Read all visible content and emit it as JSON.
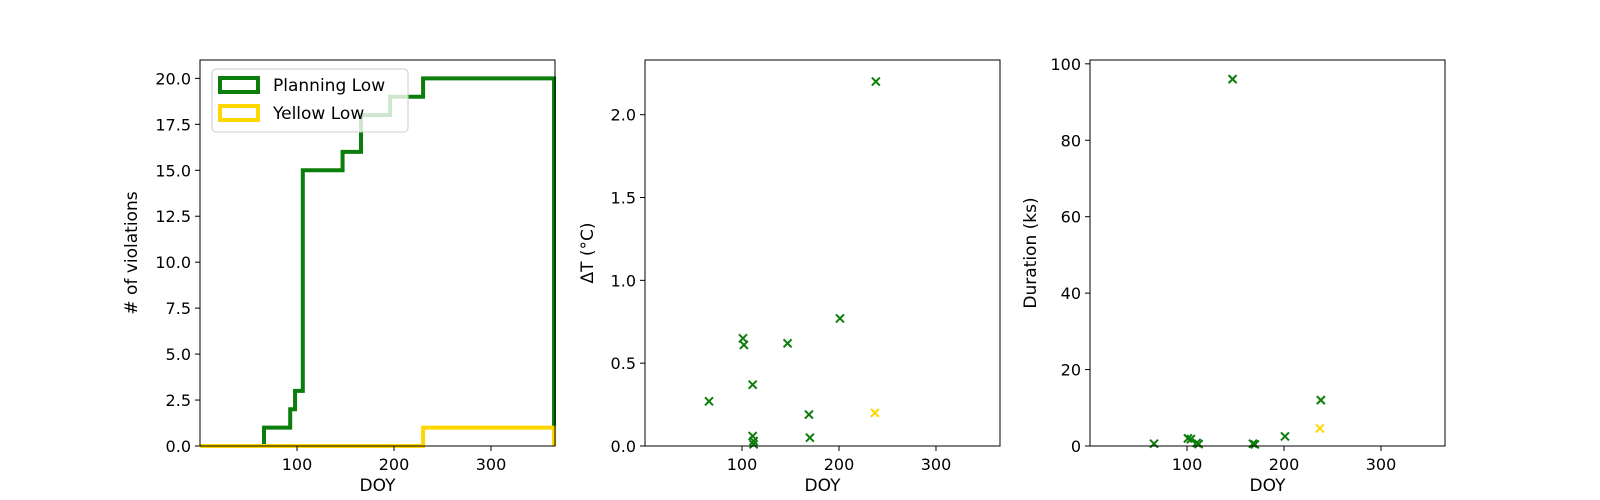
{
  "colors": {
    "planning": "#0b7d0b",
    "yellow": "#ffd700"
  },
  "chart_data": [
    {
      "type": "line",
      "subtype": "step",
      "xlabel": "DOY",
      "ylabel": "# of violations",
      "xlim": [
        0,
        366
      ],
      "ylim": [
        0,
        21
      ],
      "xticks": [
        100,
        200,
        300
      ],
      "yticks": [
        0.0,
        2.5,
        5.0,
        7.5,
        10.0,
        12.5,
        15.0,
        17.5,
        20.0
      ],
      "ytick_labels": [
        "0.0",
        "2.5",
        "5.0",
        "7.5",
        "10.0",
        "12.5",
        "15.0",
        "17.5",
        "20.0"
      ],
      "legend": {
        "position": "top-left",
        "entries": [
          "Planning Low",
          "Yellow Low"
        ]
      },
      "series": [
        {
          "name": "Planning Low",
          "color": "#0b7d0b",
          "x": [
            0,
            66,
            93,
            98,
            106,
            112,
            147,
            166,
            196,
            230,
            365,
            365
          ],
          "y": [
            0,
            1,
            2,
            3,
            15,
            15,
            16,
            18,
            19,
            20,
            20,
            0
          ]
        },
        {
          "name": "Yellow Low",
          "color": "#ffd700",
          "x": [
            0,
            230,
            365,
            365
          ],
          "y": [
            0,
            1,
            1,
            0
          ]
        }
      ]
    },
    {
      "type": "scatter",
      "xlabel": "DOY",
      "ylabel": "ΔT (°C)",
      "xlim": [
        0,
        366
      ],
      "ylim": [
        0,
        2.33
      ],
      "xticks": [
        100,
        200,
        300
      ],
      "yticks": [
        0.0,
        0.5,
        1.0,
        1.5,
        2.0
      ],
      "ytick_labels": [
        "0.0",
        "0.5",
        "1.0",
        "1.5",
        "2.0"
      ],
      "series": [
        {
          "color": "#0b7d0b",
          "x": [
            66,
            101,
            102,
            111,
            111,
            112,
            112,
            147,
            169,
            170,
            201,
            238
          ],
          "y": [
            0.27,
            0.65,
            0.61,
            0.37,
            0.06,
            0.03,
            0.01,
            0.62,
            0.19,
            0.05,
            0.77,
            2.2
          ]
        },
        {
          "color": "#ffd700",
          "x": [
            237
          ],
          "y": [
            0.2
          ]
        }
      ]
    },
    {
      "type": "scatter",
      "xlabel": "DOY",
      "ylabel": "Duration (ks)",
      "xlim": [
        0,
        366
      ],
      "ylim": [
        0,
        101
      ],
      "xticks": [
        100,
        200,
        300
      ],
      "yticks": [
        0,
        20,
        40,
        60,
        80,
        100
      ],
      "ytick_labels": [
        "0",
        "20",
        "40",
        "60",
        "80",
        "100"
      ],
      "series": [
        {
          "color": "#0b7d0b",
          "x": [
            66,
            101,
            104,
            110,
            112,
            147,
            168,
            170,
            201,
            238
          ],
          "y": [
            0.6,
            2.0,
            1.8,
            0.8,
            0.5,
            96.0,
            0.6,
            0.4,
            2.5,
            12.0
          ]
        },
        {
          "color": "#ffd700",
          "x": [
            237
          ],
          "y": [
            4.6
          ]
        }
      ]
    }
  ]
}
